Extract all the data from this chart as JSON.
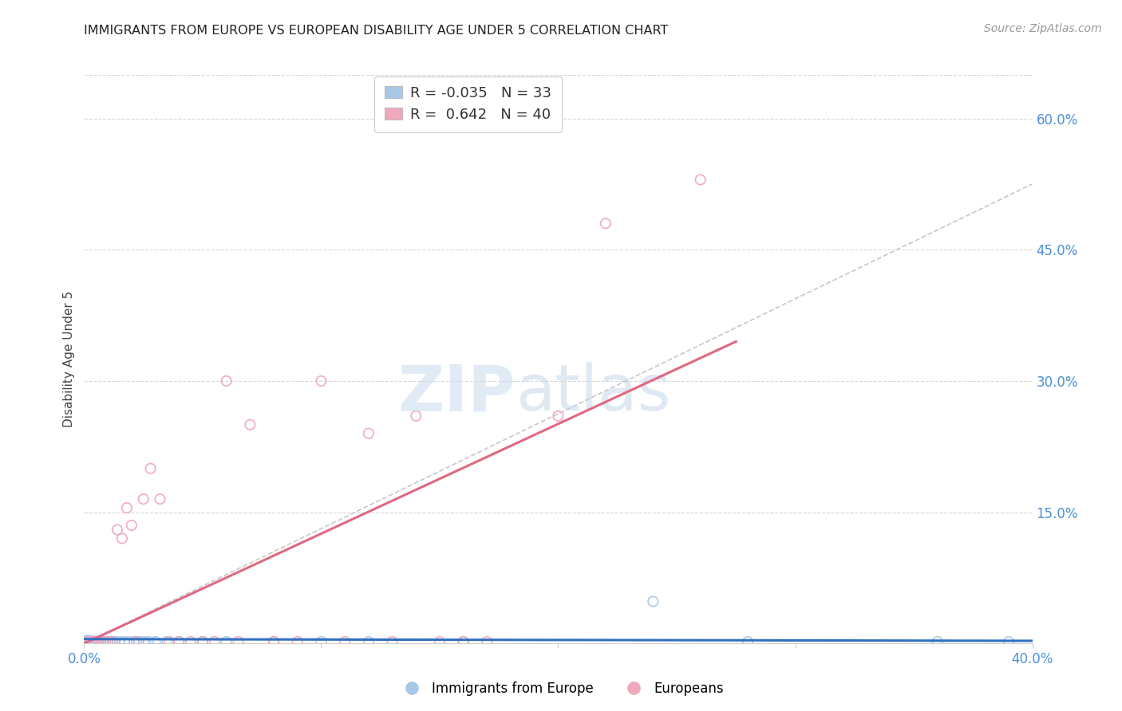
{
  "title": "IMMIGRANTS FROM EUROPE VS EUROPEAN DISABILITY AGE UNDER 5 CORRELATION CHART",
  "source": "Source: ZipAtlas.com",
  "ylabel": "Disability Age Under 5",
  "xlim": [
    0.0,
    0.4
  ],
  "ylim": [
    0.0,
    0.65
  ],
  "legend_blue_R": "-0.035",
  "legend_blue_N": "33",
  "legend_pink_R": "0.642",
  "legend_pink_N": "40",
  "legend_label_blue": "Immigrants from Europe",
  "legend_label_pink": "Europeans",
  "blue_color": "#a8c8e8",
  "pink_color": "#f0a8bc",
  "trendline_blue_color": "#3070c0",
  "trendline_pink_color": "#e06880",
  "trendline_grey_color": "#c8c8c8",
  "watermark_zip_color": "#ccdff0",
  "watermark_atlas_color": "#b8d0e8",
  "grid_color": "#d8d8d8",
  "background_color": "#ffffff",
  "blue_x": [
    0.001,
    0.002,
    0.003,
    0.004,
    0.005,
    0.006,
    0.007,
    0.008,
    0.009,
    0.01,
    0.011,
    0.012,
    0.013,
    0.015,
    0.017,
    0.019,
    0.021,
    0.023,
    0.025,
    0.027,
    0.03,
    0.035,
    0.04,
    0.05,
    0.06,
    0.08,
    0.1,
    0.12,
    0.16,
    0.24,
    0.28,
    0.36,
    0.39
  ],
  "blue_y": [
    0.002,
    0.002,
    0.002,
    0.002,
    0.002,
    0.002,
    0.002,
    0.002,
    0.002,
    0.002,
    0.002,
    0.002,
    0.002,
    0.002,
    0.002,
    0.002,
    0.002,
    0.002,
    0.002,
    0.002,
    0.002,
    0.002,
    0.002,
    0.002,
    0.002,
    0.002,
    0.002,
    0.002,
    0.002,
    0.048,
    0.002,
    0.002,
    0.002
  ],
  "blue_sizes": [
    120,
    120,
    100,
    90,
    90,
    90,
    80,
    80,
    80,
    80,
    80,
    80,
    80,
    80,
    80,
    80,
    80,
    80,
    80,
    80,
    80,
    80,
    80,
    80,
    80,
    80,
    80,
    80,
    80,
    80,
    80,
    80,
    80
  ],
  "pink_x": [
    0.001,
    0.002,
    0.003,
    0.004,
    0.005,
    0.006,
    0.007,
    0.008,
    0.009,
    0.01,
    0.012,
    0.014,
    0.016,
    0.018,
    0.02,
    0.022,
    0.025,
    0.028,
    0.032,
    0.036,
    0.04,
    0.045,
    0.05,
    0.055,
    0.06,
    0.065,
    0.07,
    0.08,
    0.09,
    0.1,
    0.11,
    0.12,
    0.13,
    0.14,
    0.15,
    0.16,
    0.17,
    0.2,
    0.22,
    0.26
  ],
  "pink_y": [
    0.002,
    0.002,
    0.002,
    0.002,
    0.002,
    0.002,
    0.002,
    0.002,
    0.002,
    0.002,
    0.002,
    0.13,
    0.12,
    0.155,
    0.135,
    0.002,
    0.165,
    0.2,
    0.165,
    0.002,
    0.002,
    0.002,
    0.002,
    0.002,
    0.3,
    0.002,
    0.25,
    0.002,
    0.002,
    0.3,
    0.002,
    0.24,
    0.002,
    0.26,
    0.002,
    0.002,
    0.002,
    0.26,
    0.48,
    0.53
  ],
  "pink_sizes": [
    80,
    80,
    80,
    80,
    80,
    80,
    80,
    80,
    80,
    80,
    80,
    80,
    80,
    80,
    80,
    80,
    80,
    80,
    80,
    80,
    80,
    80,
    80,
    80,
    80,
    80,
    80,
    80,
    80,
    80,
    80,
    80,
    80,
    80,
    80,
    80,
    80,
    80,
    80,
    80
  ],
  "pink_trendline_x0": 0.0,
  "pink_trendline_x1": 0.275,
  "pink_trendline_y0": 0.0,
  "pink_trendline_y1": 0.345,
  "blue_trendline_x0": 0.0,
  "blue_trendline_x1": 0.4,
  "blue_trendline_y0": 0.005,
  "blue_trendline_y1": 0.003,
  "grey_trendline_x0": 0.0,
  "grey_trendline_x1": 0.4,
  "grey_trendline_y0": 0.0,
  "grey_trendline_y1": 0.525
}
